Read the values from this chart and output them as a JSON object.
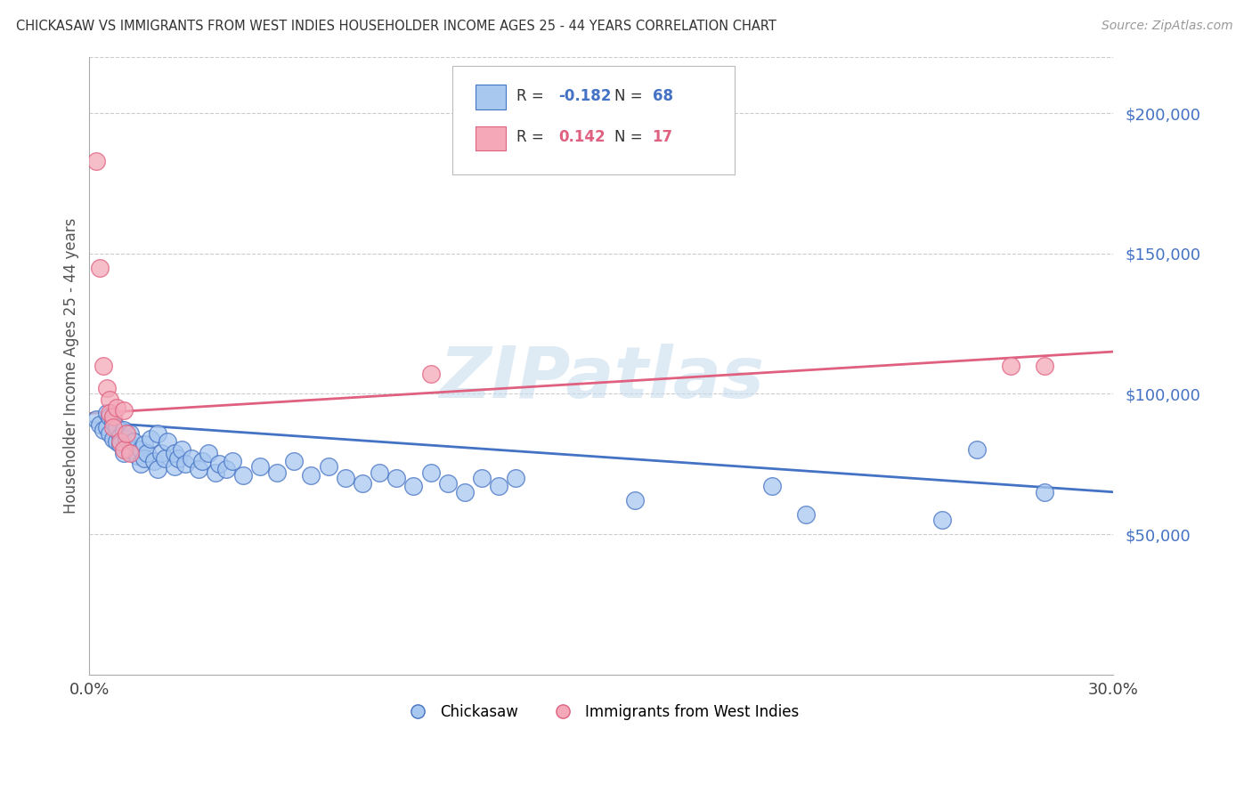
{
  "title": "CHICKASAW VS IMMIGRANTS FROM WEST INDIES HOUSEHOLDER INCOME AGES 25 - 44 YEARS CORRELATION CHART",
  "source": "Source: ZipAtlas.com",
  "ylabel": "Householder Income Ages 25 - 44 years",
  "xlim": [
    0.0,
    0.3
  ],
  "ylim": [
    0,
    220000
  ],
  "yticks": [
    50000,
    100000,
    150000,
    200000
  ],
  "ytick_labels": [
    "$50,000",
    "$100,000",
    "$150,000",
    "$200,000"
  ],
  "watermark": "ZIPatlas",
  "legend_blue_r": "-0.182",
  "legend_blue_n": "68",
  "legend_pink_r": "0.142",
  "legend_pink_n": "17",
  "legend_label_blue": "Chickasaw",
  "legend_label_pink": "Immigrants from West Indies",
  "blue_color": "#A8C8F0",
  "pink_color": "#F4A8B8",
  "line_blue_color": "#4472C4",
  "line_pink_color": "#E06080",
  "chickasaw_x": [
    0.002,
    0.003,
    0.004,
    0.005,
    0.005,
    0.006,
    0.006,
    0.007,
    0.007,
    0.008,
    0.008,
    0.009,
    0.009,
    0.01,
    0.01,
    0.011,
    0.012,
    0.012,
    0.013,
    0.014,
    0.015,
    0.015,
    0.016,
    0.016,
    0.017,
    0.018,
    0.019,
    0.02,
    0.02,
    0.021,
    0.022,
    0.023,
    0.025,
    0.025,
    0.026,
    0.027,
    0.028,
    0.03,
    0.032,
    0.033,
    0.035,
    0.037,
    0.038,
    0.04,
    0.042,
    0.045,
    0.05,
    0.055,
    0.06,
    0.065,
    0.07,
    0.075,
    0.08,
    0.085,
    0.09,
    0.095,
    0.1,
    0.105,
    0.11,
    0.115,
    0.12,
    0.125,
    0.16,
    0.2,
    0.21,
    0.25,
    0.26,
    0.28
  ],
  "chickasaw_y": [
    91000,
    89000,
    87000,
    93000,
    88000,
    86000,
    92000,
    84000,
    90000,
    83000,
    88000,
    85000,
    82000,
    87000,
    79000,
    84000,
    80000,
    86000,
    83000,
    78000,
    80000,
    75000,
    82000,
    77000,
    79000,
    84000,
    76000,
    73000,
    86000,
    79000,
    77000,
    83000,
    74000,
    79000,
    77000,
    80000,
    75000,
    77000,
    73000,
    76000,
    79000,
    72000,
    75000,
    73000,
    76000,
    71000,
    74000,
    72000,
    76000,
    71000,
    74000,
    70000,
    68000,
    72000,
    70000,
    67000,
    72000,
    68000,
    65000,
    70000,
    67000,
    70000,
    62000,
    67000,
    57000,
    55000,
    80000,
    65000
  ],
  "west_indies_x": [
    0.002,
    0.003,
    0.004,
    0.005,
    0.006,
    0.006,
    0.007,
    0.007,
    0.008,
    0.009,
    0.01,
    0.01,
    0.011,
    0.012,
    0.1,
    0.27,
    0.28
  ],
  "west_indies_y": [
    183000,
    145000,
    110000,
    102000,
    98000,
    93000,
    92000,
    88000,
    95000,
    83000,
    80000,
    94000,
    86000,
    79000,
    107000,
    110000,
    110000
  ]
}
